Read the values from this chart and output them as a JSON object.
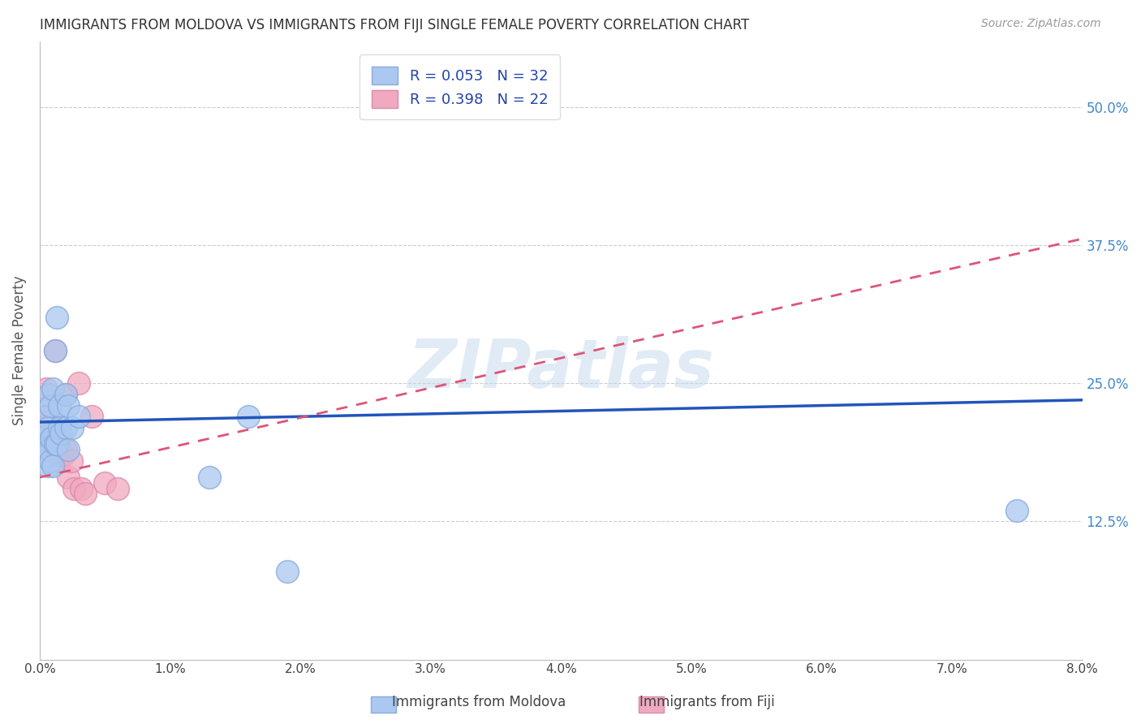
{
  "title": "IMMIGRANTS FROM MOLDOVA VS IMMIGRANTS FROM FIJI SINGLE FEMALE POVERTY CORRELATION CHART",
  "source": "Source: ZipAtlas.com",
  "ylabel": "Single Female Poverty",
  "ytick_labels": [
    "50.0%",
    "37.5%",
    "25.0%",
    "12.5%"
  ],
  "ytick_values": [
    0.5,
    0.375,
    0.25,
    0.125
  ],
  "xlim": [
    0.0,
    0.08
  ],
  "ylim": [
    0.0,
    0.56
  ],
  "watermark": "ZIPatlas",
  "moldova_color": "#aac8f0",
  "moldova_edge_color": "#88aadd",
  "fiji_color": "#f0aac0",
  "fiji_edge_color": "#dd88aa",
  "moldova_line_color": "#2255bb",
  "fiji_line_color": "#dd5577",
  "legend1_label": "R = 0.053   N = 32",
  "legend2_label": "R = 0.398   N = 22",
  "moldova_x": [
    0.0002,
    0.0002,
    0.0003,
    0.0004,
    0.0005,
    0.0005,
    0.0006,
    0.0006,
    0.0007,
    0.0007,
    0.0008,
    0.0008,
    0.0009,
    0.001,
    0.001,
    0.0012,
    0.0012,
    0.0013,
    0.0013,
    0.0015,
    0.0015,
    0.0016,
    0.002,
    0.002,
    0.0022,
    0.0022,
    0.0025,
    0.003,
    0.013,
    0.016,
    0.019,
    0.075
  ],
  "moldova_y": [
    0.2,
    0.195,
    0.195,
    0.185,
    0.22,
    0.185,
    0.21,
    0.175,
    0.24,
    0.19,
    0.23,
    0.18,
    0.2,
    0.245,
    0.175,
    0.28,
    0.195,
    0.31,
    0.195,
    0.23,
    0.21,
    0.205,
    0.24,
    0.21,
    0.23,
    0.19,
    0.21,
    0.22,
    0.165,
    0.22,
    0.08,
    0.135
  ],
  "fiji_x": [
    0.0003,
    0.0005,
    0.0006,
    0.0008,
    0.001,
    0.001,
    0.0012,
    0.0014,
    0.0015,
    0.0016,
    0.0018,
    0.002,
    0.002,
    0.0022,
    0.0024,
    0.0026,
    0.003,
    0.0032,
    0.0035,
    0.004,
    0.005,
    0.006
  ],
  "fiji_y": [
    0.22,
    0.245,
    0.195,
    0.215,
    0.195,
    0.19,
    0.28,
    0.2,
    0.195,
    0.185,
    0.185,
    0.24,
    0.19,
    0.165,
    0.18,
    0.155,
    0.25,
    0.155,
    0.15,
    0.22,
    0.16,
    0.155
  ],
  "moldova_R": 0.053,
  "moldova_N": 32,
  "fiji_R": 0.398,
  "fiji_N": 22
}
